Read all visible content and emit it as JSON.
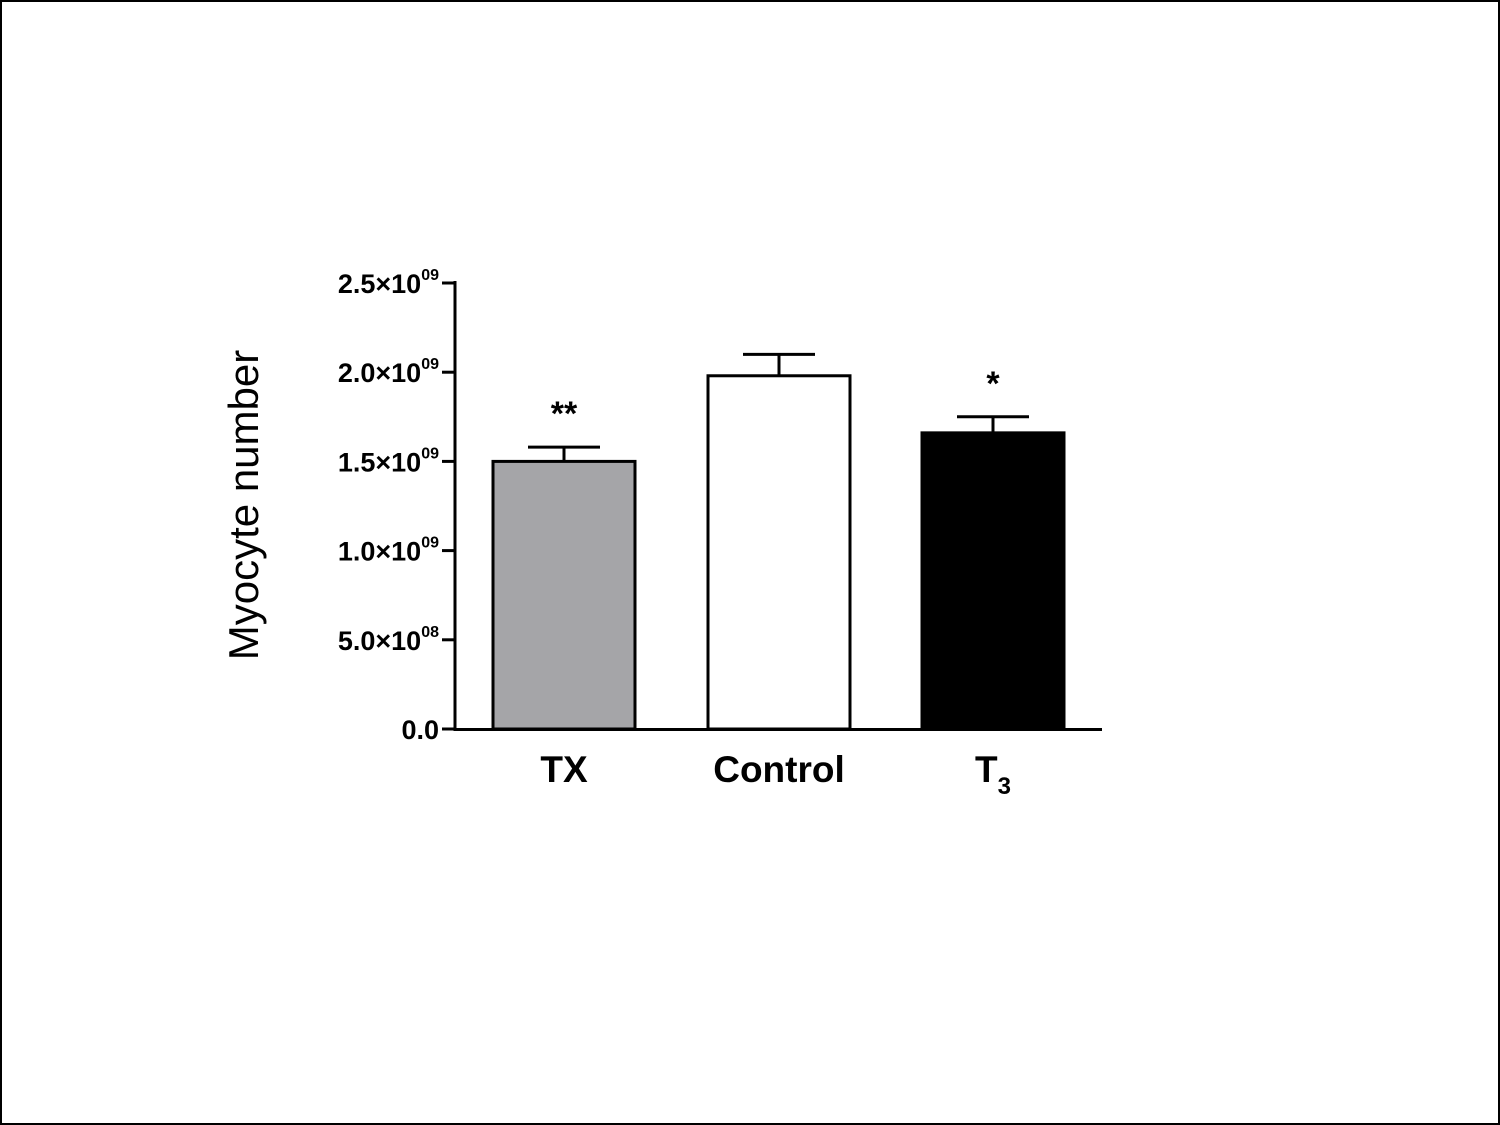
{
  "chart_data": {
    "type": "bar",
    "title": "",
    "xlabel": "",
    "ylabel": "Myocyte number",
    "ylim": [
      0,
      2500000000
    ],
    "yticks": [
      {
        "value": 0,
        "mantissa": "0.0",
        "times": "",
        "exponent": ""
      },
      {
        "value": 500000000,
        "mantissa": "5.0",
        "times": "×10",
        "exponent": "08"
      },
      {
        "value": 1000000000,
        "mantissa": "1.0",
        "times": "×10",
        "exponent": "09"
      },
      {
        "value": 1500000000,
        "mantissa": "1.5",
        "times": "×10",
        "exponent": "09"
      },
      {
        "value": 2000000000,
        "mantissa": "2.0",
        "times": "×10",
        "exponent": "09"
      },
      {
        "value": 2500000000,
        "mantissa": "2.5",
        "times": "×10",
        "exponent": "09"
      }
    ],
    "categories": [
      {
        "main": "TX",
        "sub": ""
      },
      {
        "main": "Control",
        "sub": ""
      },
      {
        "main": "T",
        "sub": "3"
      }
    ],
    "values": [
      1500000000,
      1980000000,
      1660000000
    ],
    "errors": [
      80000000,
      120000000,
      90000000
    ],
    "annotations": [
      "**",
      "",
      "*"
    ],
    "colors": [
      "#a5a5a8",
      "#ffffff",
      "#000000"
    ],
    "grid": false
  }
}
